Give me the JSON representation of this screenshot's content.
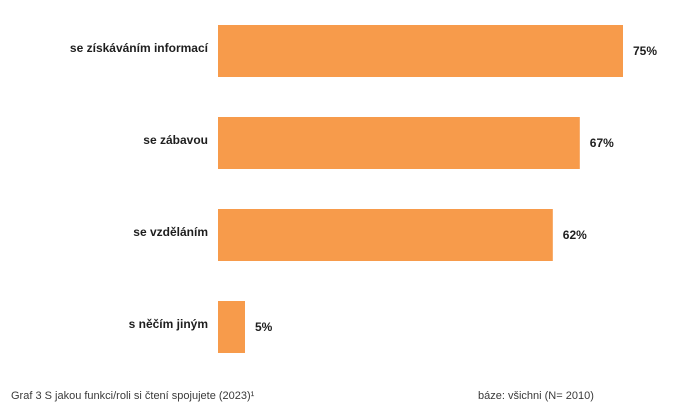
{
  "chart_data": {
    "type": "bar",
    "orientation": "horizontal",
    "categories": [
      "se získáváním informací",
      "se zábavou",
      "se vzděláním",
      "s něčím jiným"
    ],
    "values": [
      75,
      67,
      62,
      5
    ],
    "data_labels": [
      "75%",
      "67%",
      "62%",
      "5%"
    ],
    "grid": false,
    "legend": false
  },
  "colors": {
    "bar": "#F79B4B",
    "text": "#1e1e1e",
    "footer_text": "#3a3a3a"
  },
  "footer": {
    "caption": "Graf 3 S jakou funkci/roli si čtení spojujete (2023)¹",
    "base": "báze: všichni (N= 2010)"
  }
}
